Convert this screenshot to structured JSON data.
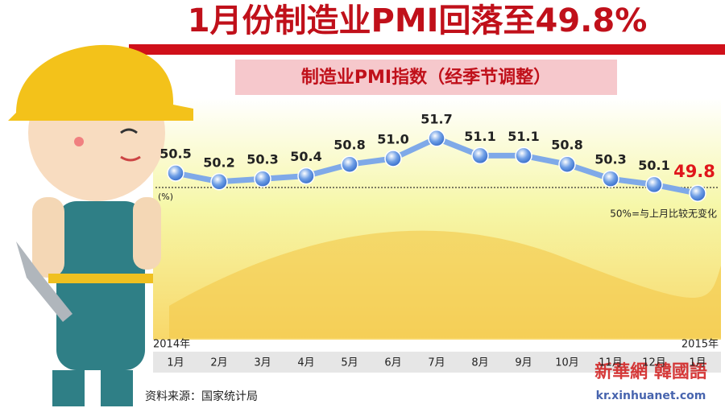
{
  "chart_data": {
    "type": "line",
    "title": "1月份制造业PMI回落至49.8%",
    "subtitle": "制造业PMI指数（经季节调整）",
    "categories": [
      "1月",
      "2月",
      "3月",
      "4月",
      "5月",
      "6月",
      "7月",
      "8月",
      "9月",
      "10月",
      "11月",
      "12月",
      "1月"
    ],
    "start_year": "2014年",
    "end_year": "2015年",
    "values": [
      50.5,
      50.2,
      50.3,
      50.4,
      50.8,
      51.0,
      51.7,
      51.1,
      51.1,
      50.8,
      50.3,
      50.1,
      49.8
    ],
    "value_labels": [
      "50.5",
      "50.2",
      "50.3",
      "50.4",
      "50.8",
      "51.0",
      "51.7",
      "51.1",
      "51.1",
      "50.8",
      "50.3",
      "50.1",
      "49.8"
    ],
    "color": "#7fa9e8",
    "highlight_color": "#e0161b",
    "ylim": [
      47.5,
      52.5
    ],
    "reference_line": {
      "value": 50,
      "unit_label": "(%)",
      "note": "50%=与上月比较无变化"
    },
    "source": "资料来源：国家统计局",
    "watermark": "新華網 韓國語",
    "watermark_url": "kr.xinhuanet.com"
  }
}
